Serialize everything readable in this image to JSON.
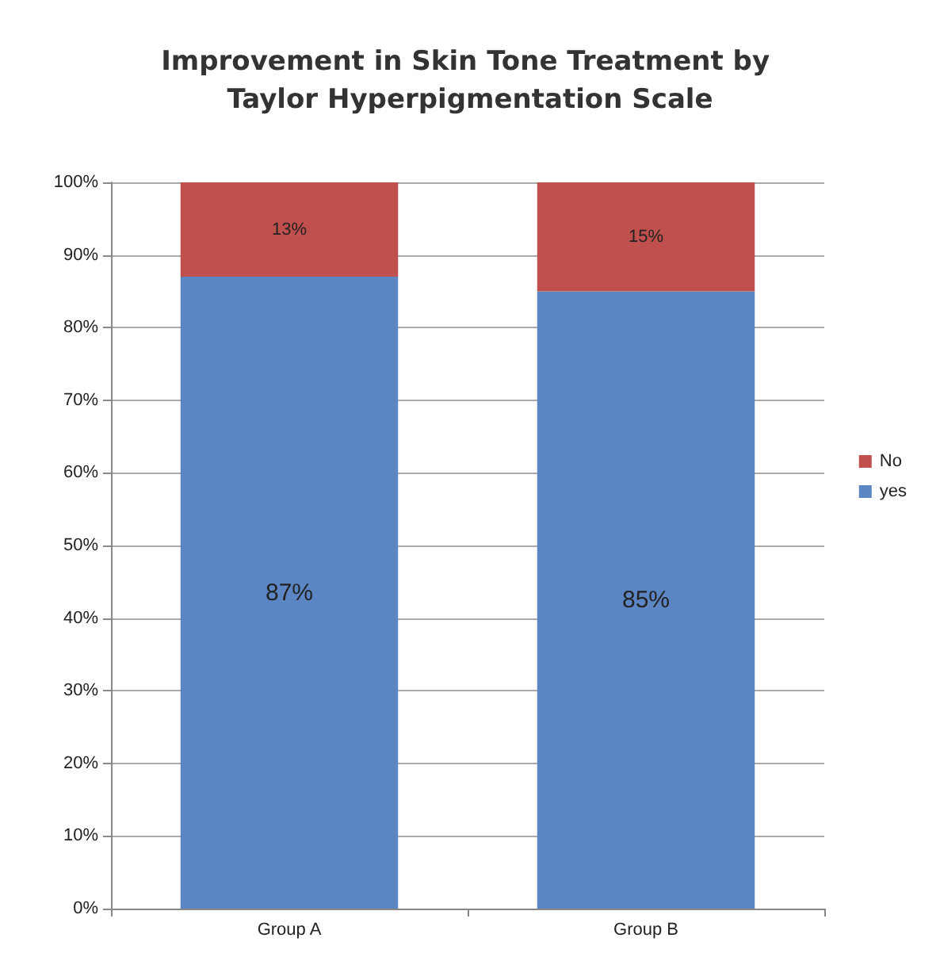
{
  "chart_data": {
    "type": "bar",
    "title": "Improvement in Skin Tone Treatment by Taylor Hyperpigmentation Scale",
    "categories": [
      "Group A",
      "Group B"
    ],
    "stacked": true,
    "series": [
      {
        "name": "yes",
        "color": "#5b86c3",
        "values": [
          87,
          85
        ],
        "value_labels": [
          "87%",
          "85%"
        ]
      },
      {
        "name": "No",
        "color": "#c0504d",
        "values": [
          13,
          15
        ],
        "value_labels": [
          "13%",
          "15%"
        ]
      }
    ],
    "ylim": [
      0,
      100
    ],
    "yticks": [
      {
        "value": 0,
        "label": "0%"
      },
      {
        "value": 10,
        "label": "10%"
      },
      {
        "value": 20,
        "label": "20%"
      },
      {
        "value": 30,
        "label": "30%"
      },
      {
        "value": 40,
        "label": "40%"
      },
      {
        "value": 50,
        "label": "50%"
      },
      {
        "value": 60,
        "label": "60%"
      },
      {
        "value": 70,
        "label": "70%"
      },
      {
        "value": 80,
        "label": "80%"
      },
      {
        "value": 90,
        "label": "90%"
      },
      {
        "value": 100,
        "label": "100%"
      }
    ],
    "grid": "y",
    "legend": "right"
  }
}
